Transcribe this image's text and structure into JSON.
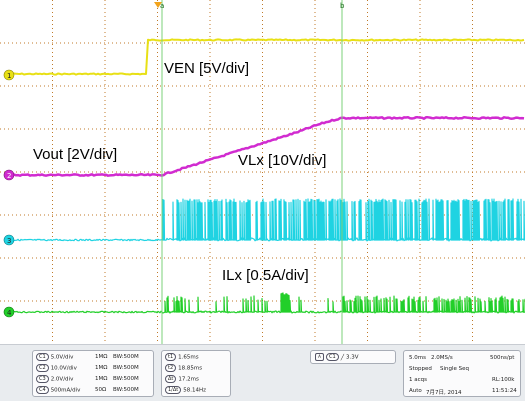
{
  "colors": {
    "background": "#ffffff",
    "grid": "#c07a2a",
    "ch1": "#e8e015",
    "ch2": "#d12bd0",
    "ch3": "#1fd3e2",
    "ch4": "#22cf29",
    "cursor": "#7bd07a",
    "status_bg": "#e9ecef"
  },
  "labels": {
    "ven": "VEN [5V/div]",
    "vout": "Vout [2V/div]",
    "vlx": "VLx [10V/div]",
    "ilx": "ILx [0.5A/div]"
  },
  "markers": {
    "ch1": "1",
    "ch2": "2",
    "ch3": "3",
    "ch4": "4",
    "cursor_a": "a",
    "cursor_b": "b"
  },
  "channels": [
    {
      "id": "C1",
      "scale": "5.0V/div",
      "impedance": "1MΩ",
      "bw": "BW:500M"
    },
    {
      "id": "C2",
      "scale": "10.0V/div",
      "impedance": "1MΩ",
      "bw": "BW:500M"
    },
    {
      "id": "C3",
      "scale": "2.0V/div",
      "impedance": "1MΩ",
      "bw": "BW:500M"
    },
    {
      "id": "C4",
      "scale": "500mA/div",
      "impedance": "50Ω",
      "bw": "BW:500M"
    }
  ],
  "cursors": [
    {
      "id": "t1",
      "value": "1.65ms"
    },
    {
      "id": "t2",
      "value": "18.85ms"
    },
    {
      "id": "Δt",
      "value": "17.2ms"
    },
    {
      "id": "1/Δt",
      "value": "58.14Hz"
    }
  ],
  "trigger": {
    "channel": "C1",
    "level": "3.3V"
  },
  "acquisition": {
    "timebase": "5.0ms",
    "sample_rate": "2.0MS/s",
    "resolution": "500ns/pt",
    "state": "Stopped",
    "mode": "Single Seq",
    "acqs": "1 acqs",
    "record_length": "RL:100k",
    "trigger_mode": "Auto",
    "date": "7月7日, 2014",
    "time": "11:51:24"
  }
}
